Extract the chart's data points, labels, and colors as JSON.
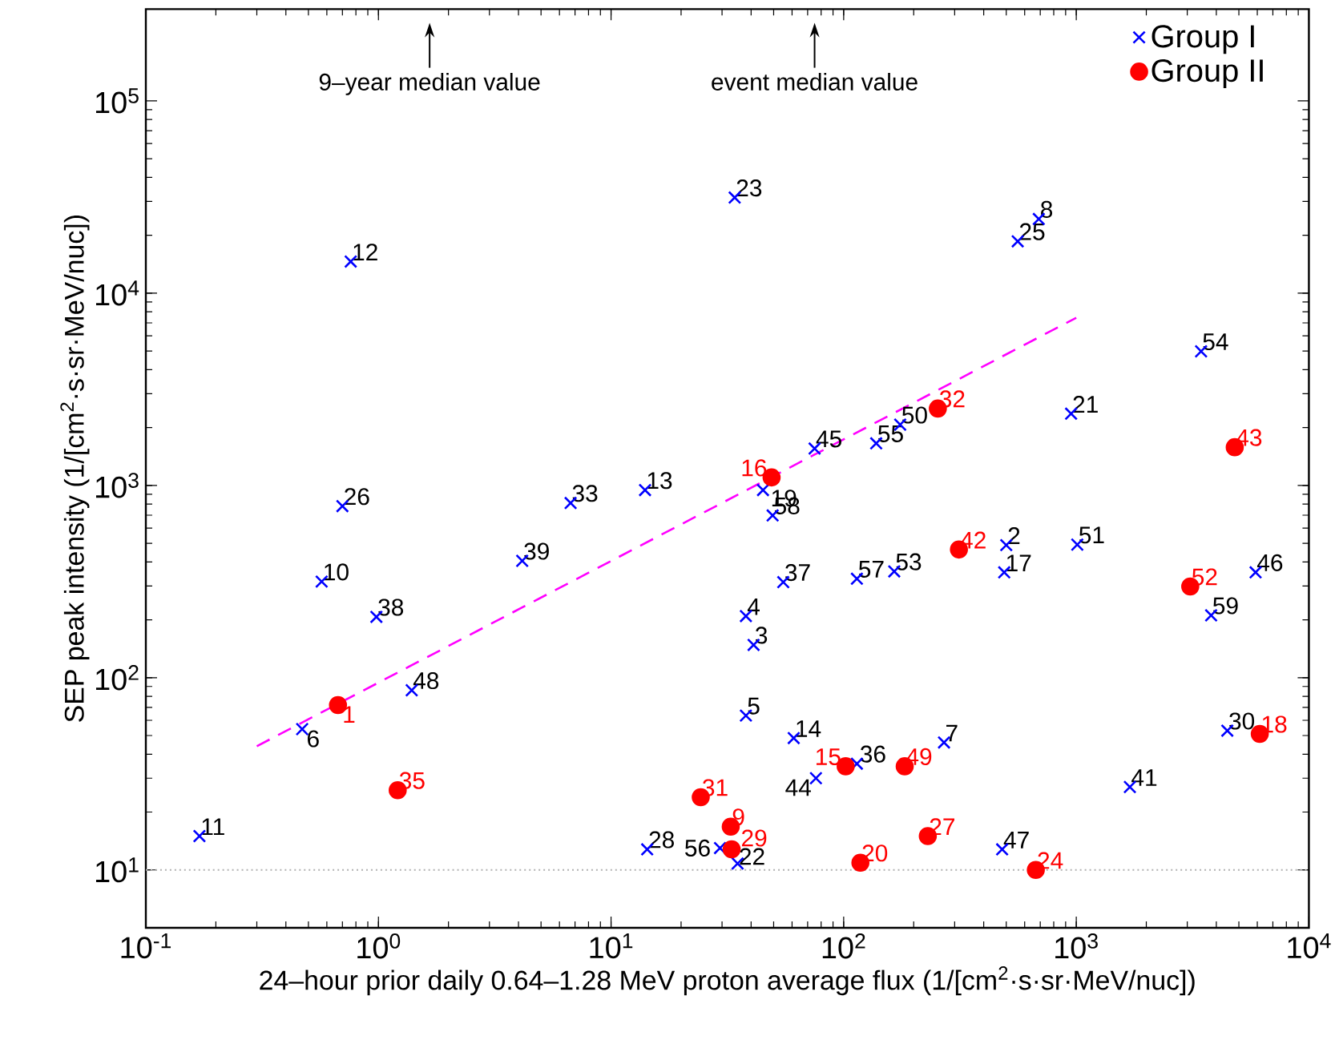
{
  "chart_data": {
    "type": "scatter",
    "xlabel": "24–hour prior daily 0.64–1.28 MeV proton average flux (1/[cm$^{2}$·s·sr·MeV/nuc])",
    "ylabel": "SEP peak intensity (1/[cm$^{2}$·s·sr·MeV/nuc])",
    "log": "xy",
    "grid": false,
    "legend": "top right",
    "xlim": [
      0.1,
      10000
    ],
    "ylim": [
      5,
      300000
    ],
    "xticks": [
      {
        "value": 0.1,
        "label": "10$^{-1}$"
      },
      {
        "value": 1,
        "label": "10$^{0}$"
      },
      {
        "value": 10,
        "label": "10$^{1}$"
      },
      {
        "value": 100,
        "label": "10$^{2}$"
      },
      {
        "value": 1000,
        "label": "10$^{3}$"
      },
      {
        "value": 10000,
        "label": "10$^{4}$"
      }
    ],
    "yticks": [
      {
        "value": 10,
        "label": "10$^{1}$"
      },
      {
        "value": 100,
        "label": "10$^{2}$"
      },
      {
        "value": 1000,
        "label": "10$^{3}$"
      },
      {
        "value": 10000,
        "label": "10$^{4}$"
      },
      {
        "value": 100000,
        "label": "10$^{5}$"
      }
    ],
    "series": [
      {
        "name": "Group I",
        "color": "#0000ff",
        "marker": "cross",
        "x": [
          0.17,
          0.47,
          0.7,
          0.57,
          0.98,
          1.39,
          0.76,
          4.15,
          6.7,
          14,
          34,
          560,
          690,
          3440,
          950,
          75,
          138,
          175,
          45,
          49.5,
          55,
          38,
          41,
          114,
          165,
          500,
          490,
          1010,
          5900,
          3800,
          38,
          61,
          76,
          114,
          270,
          1700,
          4460,
          14.3,
          480,
          35,
          29.4
        ],
        "values": [
          15,
          54,
          780,
          316,
          207,
          86,
          14600,
          405,
          810,
          945,
          31400,
          18600,
          24300,
          4980,
          2360,
          1555,
          1655,
          2070,
          945,
          698,
          314,
          209,
          148,
          327,
          357,
          489,
          353,
          492,
          353,
          211,
          63.5,
          48.5,
          30,
          35.7,
          46,
          27,
          53,
          12.8,
          12.8,
          10.8,
          13
        ]
      },
      {
        "name": "Group II",
        "color": "#ff0000",
        "marker": "circle",
        "x": [
          0.67,
          1.21,
          49,
          254,
          4800,
          313,
          3090,
          6150,
          102,
          183,
          24.3,
          32.7,
          33,
          118,
          230,
          670
        ],
        "values": [
          72,
          26,
          1100,
          2510,
          1580,
          464,
          298,
          51,
          34.6,
          34.6,
          23.9,
          16.8,
          12.8,
          10.9,
          15,
          10
        ]
      },
      {
        "type": "line",
        "color": "#ff00ff",
        "line_style": "dashed",
        "marker": "none",
        "x": [
          0.3,
          1000
        ],
        "values": [
          44,
          7450
        ]
      }
    ],
    "ref_lines": [
      {
        "axis": "y",
        "value": 10,
        "color": "#b0b0b0",
        "line_style": "dotted"
      }
    ],
    "annotations": [
      {
        "text": "11",
        "x": 0.17,
        "y": 15
      },
      {
        "text": "6",
        "x": 0.47,
        "y": 54
      },
      {
        "text": "26",
        "x": 0.7,
        "y": 780
      },
      {
        "text": "10",
        "x": 0.57,
        "y": 316
      },
      {
        "text": "38",
        "x": 0.98,
        "y": 207
      },
      {
        "text": "48",
        "x": 1.39,
        "y": 86
      },
      {
        "text": "12",
        "x": 0.76,
        "y": 14600
      },
      {
        "text": "39",
        "x": 4.15,
        "y": 405
      },
      {
        "text": "33",
        "x": 6.7,
        "y": 810
      },
      {
        "text": "13",
        "x": 14,
        "y": 945
      },
      {
        "text": "23",
        "x": 34,
        "y": 31400
      },
      {
        "text": "25",
        "x": 560,
        "y": 18600
      },
      {
        "text": "8",
        "x": 690,
        "y": 24300
      },
      {
        "text": "54",
        "x": 3440,
        "y": 4980
      },
      {
        "text": "21",
        "x": 950,
        "y": 2360
      },
      {
        "text": "45",
        "x": 75,
        "y": 1555
      },
      {
        "text": "55",
        "x": 138,
        "y": 1655
      },
      {
        "text": "50",
        "x": 175,
        "y": 2070
      },
      {
        "text": "19",
        "x": 45,
        "y": 945
      },
      {
        "text": "58",
        "x": 49.5,
        "y": 698
      },
      {
        "text": "37",
        "x": 55,
        "y": 314
      },
      {
        "text": "4",
        "x": 38,
        "y": 209
      },
      {
        "text": "3",
        "x": 41,
        "y": 148
      },
      {
        "text": "57",
        "x": 114,
        "y": 327
      },
      {
        "text": "53",
        "x": 165,
        "y": 357
      },
      {
        "text": "2",
        "x": 500,
        "y": 489
      },
      {
        "text": "17",
        "x": 490,
        "y": 353
      },
      {
        "text": "51",
        "x": 1010,
        "y": 492
      },
      {
        "text": "46",
        "x": 5900,
        "y": 353
      },
      {
        "text": "59",
        "x": 3800,
        "y": 211
      },
      {
        "text": "5",
        "x": 38,
        "y": 63.5
      },
      {
        "text": "14",
        "x": 61,
        "y": 48.5
      },
      {
        "text": "44",
        "x": 76,
        "y": 30
      },
      {
        "text": "36",
        "x": 114,
        "y": 35.7
      },
      {
        "text": "7",
        "x": 270,
        "y": 46
      },
      {
        "text": "41",
        "x": 1700,
        "y": 27
      },
      {
        "text": "30",
        "x": 4460,
        "y": 53
      },
      {
        "text": "28",
        "x": 14.3,
        "y": 12.8
      },
      {
        "text": "47",
        "x": 480,
        "y": 12.8
      },
      {
        "text": "22",
        "x": 35,
        "y": 10.8
      },
      {
        "text": "56",
        "x": 29.4,
        "y": 13
      },
      {
        "text": "1",
        "x": 0.67,
        "y": 72
      },
      {
        "text": "35",
        "x": 1.21,
        "y": 26
      },
      {
        "text": "16",
        "x": 49,
        "y": 1100
      },
      {
        "text": "32",
        "x": 254,
        "y": 2510
      },
      {
        "text": "43",
        "x": 4800,
        "y": 1580
      },
      {
        "text": "42",
        "x": 313,
        "y": 464
      },
      {
        "text": "52",
        "x": 3090,
        "y": 298
      },
      {
        "text": "18",
        "x": 6150,
        "y": 51
      },
      {
        "text": "15",
        "x": 102,
        "y": 34.6
      },
      {
        "text": "49",
        "x": 183,
        "y": 34.6
      },
      {
        "text": "31",
        "x": 24.3,
        "y": 23.9
      },
      {
        "text": "9",
        "x": 32.7,
        "y": 16.8
      },
      {
        "text": "29",
        "x": 33,
        "y": 12.8
      },
      {
        "text": "20",
        "x": 118,
        "y": 10.9
      },
      {
        "text": "27",
        "x": 230,
        "y": 15
      },
      {
        "text": "24",
        "x": 670,
        "y": 10
      },
      "9–year median value",
      "event median value"
    ]
  }
}
